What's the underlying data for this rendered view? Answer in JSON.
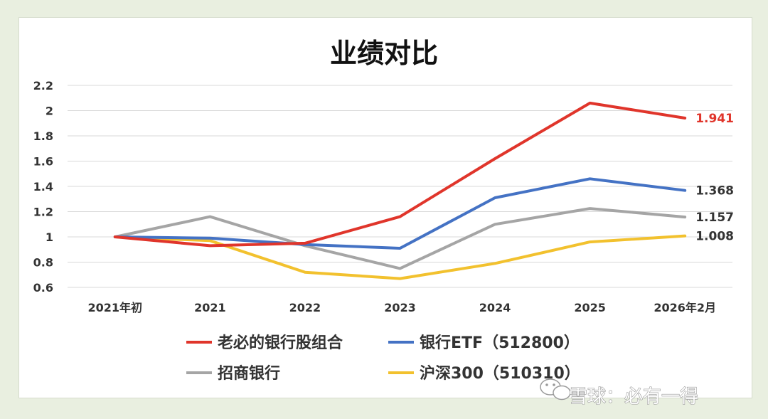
{
  "chart_data": {
    "type": "line",
    "title": "业绩对比",
    "categories": [
      "2021年初",
      "2021",
      "2022",
      "2023",
      "2024",
      "2025",
      "2026年2月"
    ],
    "yticks": [
      "0.6",
      "0.8",
      "1",
      "1.2",
      "1.4",
      "1.6",
      "1.8",
      "2",
      "2.2"
    ],
    "ylim": [
      0.6,
      2.2
    ],
    "grid": true,
    "legend_position": "bottom",
    "series": [
      {
        "name": "老必的银行股组合",
        "color": "#e0352b",
        "values": [
          1.0,
          0.93,
          0.95,
          1.16,
          1.62,
          2.06,
          1.941
        ],
        "end_label": "1.941",
        "end_label_color": "#e0352b"
      },
      {
        "name": "银行ETF（512800）",
        "color": "#4472c4",
        "values": [
          1.0,
          0.99,
          0.94,
          0.91,
          1.31,
          1.46,
          1.368
        ],
        "end_label": "1.368",
        "end_label_color": "#333333"
      },
      {
        "name": "招商银行",
        "color": "#a5a5a5",
        "values": [
          1.0,
          1.16,
          0.93,
          0.75,
          1.1,
          1.225,
          1.157
        ],
        "end_label": "1.157",
        "end_label_color": "#333333"
      },
      {
        "name": "沪深300（510310）",
        "color": "#f2c12e",
        "values": [
          1.0,
          0.97,
          0.72,
          0.67,
          0.79,
          0.96,
          1.008
        ],
        "end_label": "1.008",
        "end_label_color": "#333333"
      }
    ]
  },
  "watermark": {
    "text": "雪球：必有一得",
    "icon": "wechat-icon"
  }
}
